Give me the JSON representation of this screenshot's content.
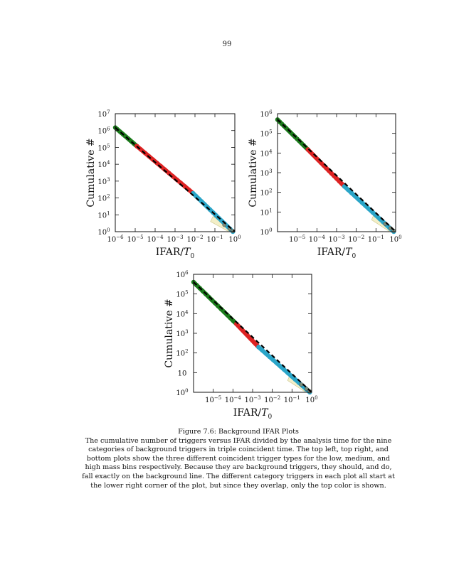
{
  "page": {
    "number": "99"
  },
  "figure": {
    "label": "Figure 7.6: Background IFAR Plots",
    "body": "The cumulative number of triggers versus IFAR divided by the analysis time for the nine categories of background triggers in triple coincident time. The top left, top right, and bottom plots show the three different coincident trigger types for the low, medium, and high mass bins respectively. Because they are background triggers, they should, and do, fall exactly on the background line. The different category triggers in each plot all start at the lower right corner of the plot, but since they overlap, only the top color is shown."
  },
  "colors": {
    "series_green": "#1a7a1a",
    "series_red": "#dd2222",
    "series_cyan": "#2aa5c8",
    "expected_line": "#000000",
    "band": "#f3efc8"
  },
  "chart_data": [
    {
      "type": "scatter",
      "panel": "top-left",
      "xlabel": "IFAR/T_0",
      "ylabel": "Cumulative #",
      "xscale": "log",
      "yscale": "log",
      "xlim": [
        1e-06,
        1
      ],
      "ylim": [
        1,
        10000000.0
      ],
      "xticks": [
        {
          "v": 1e-06,
          "base": "10",
          "exp": "−6"
        },
        {
          "v": 1e-05,
          "base": "10",
          "exp": "−5"
        },
        {
          "v": 0.0001,
          "base": "10",
          "exp": "−4"
        },
        {
          "v": 0.001,
          "base": "10",
          "exp": "−3"
        },
        {
          "v": 0.01,
          "base": "10",
          "exp": "−2"
        },
        {
          "v": 0.1,
          "base": "10",
          "exp": "−1"
        },
        {
          "v": 1,
          "base": "10",
          "exp": "0"
        }
      ],
      "yticks": [
        {
          "v": 1,
          "base": "10",
          "exp": "0"
        },
        {
          "v": 10,
          "base": "10",
          "exp": "1"
        },
        {
          "v": 100,
          "base": "10",
          "exp": "2"
        },
        {
          "v": 1000,
          "base": "10",
          "exp": "3"
        },
        {
          "v": 10000,
          "base": "10",
          "exp": "4"
        },
        {
          "v": 100000,
          "base": "10",
          "exp": "5"
        },
        {
          "v": 1000000,
          "base": "10",
          "exp": "6"
        },
        {
          "v": 10000000,
          "base": "10",
          "exp": "7"
        }
      ],
      "expected": {
        "x": [
          1e-06,
          1
        ],
        "y": [
          1500000,
          1
        ]
      },
      "series": [
        {
          "color_key": "series_green",
          "x_range": [
            1e-06,
            1.2e-05
          ],
          "y_range": [
            1500000,
            120000
          ]
        },
        {
          "color_key": "series_red",
          "x_range": [
            1.2e-05,
            0.008
          ],
          "y_range": [
            120000,
            190
          ]
        },
        {
          "color_key": "series_cyan",
          "x_range": [
            0.008,
            0.8
          ],
          "y_range": [
            190,
            1
          ]
        }
      ]
    },
    {
      "type": "scatter",
      "panel": "top-right",
      "xlabel": "IFAR/T_0",
      "ylabel": "Cumulative #",
      "xscale": "log",
      "yscale": "log",
      "xlim": [
        1e-06,
        1
      ],
      "ylim": [
        1,
        1000000.0
      ],
      "xticks": [
        {
          "v": 1e-05,
          "base": "10",
          "exp": "−5"
        },
        {
          "v": 0.0001,
          "base": "10",
          "exp": "−4"
        },
        {
          "v": 0.001,
          "base": "10",
          "exp": "−3"
        },
        {
          "v": 0.01,
          "base": "10",
          "exp": "−2"
        },
        {
          "v": 0.1,
          "base": "10",
          "exp": "−1"
        },
        {
          "v": 1,
          "base": "10",
          "exp": "0"
        }
      ],
      "yticks": [
        {
          "v": 1,
          "base": "10",
          "exp": "0"
        },
        {
          "v": 10,
          "base": "10",
          "exp": "1"
        },
        {
          "v": 100,
          "base": "10",
          "exp": "2"
        },
        {
          "v": 1000,
          "base": "10",
          "exp": "3"
        },
        {
          "v": 10000,
          "base": "10",
          "exp": "4"
        },
        {
          "v": 100000,
          "base": "10",
          "exp": "5"
        },
        {
          "v": 1000000,
          "base": "10",
          "exp": "6"
        }
      ],
      "expected": {
        "x": [
          1e-06,
          1
        ],
        "y": [
          500000,
          1
        ]
      },
      "series": [
        {
          "color_key": "series_green",
          "x_range": [
            1e-06,
            3.5e-05
          ],
          "y_range": [
            500000,
            15000
          ]
        },
        {
          "color_key": "series_red",
          "x_range": [
            3.5e-05,
            0.0025
          ],
          "y_range": [
            15000,
            200
          ]
        },
        {
          "color_key": "series_cyan",
          "x_range": [
            0.0025,
            0.8
          ],
          "y_range": [
            200,
            1
          ]
        }
      ]
    },
    {
      "type": "scatter",
      "panel": "bottom",
      "xlabel": "IFAR/T_0",
      "ylabel": "Cumulative #",
      "xscale": "log",
      "yscale": "log",
      "xlim": [
        1e-06,
        1
      ],
      "ylim": [
        1,
        1000000.0
      ],
      "xticks": [
        {
          "v": 1e-05,
          "base": "10",
          "exp": "−5"
        },
        {
          "v": 0.0001,
          "base": "10",
          "exp": "−4"
        },
        {
          "v": 0.001,
          "base": "10",
          "exp": "−3"
        },
        {
          "v": 0.01,
          "base": "10",
          "exp": "−2"
        },
        {
          "v": 0.1,
          "base": "10",
          "exp": "−1"
        },
        {
          "v": 1,
          "base": "10",
          "exp": "0"
        }
      ],
      "yticks": [
        {
          "v": 1,
          "base": "10",
          "exp": "0"
        },
        {
          "v": 10,
          "base": "10",
          "exp": ""
        },
        {
          "v": 100,
          "base": "10",
          "exp": "2"
        },
        {
          "v": 1000,
          "base": "10",
          "exp": "3"
        },
        {
          "v": 10000,
          "base": "10",
          "exp": "4"
        },
        {
          "v": 100000,
          "base": "10",
          "exp": "5"
        },
        {
          "v": 1000000,
          "base": "10",
          "exp": "6"
        }
      ],
      "expected": {
        "x": [
          1e-06,
          1
        ],
        "y": [
          400000,
          1
        ]
      },
      "series": [
        {
          "color_key": "series_green",
          "x_range": [
            1e-06,
            0.00015
          ],
          "y_range": [
            400000,
            3000
          ]
        },
        {
          "color_key": "series_red",
          "x_range": [
            0.00015,
            0.002
          ],
          "y_range": [
            3000,
            200
          ]
        },
        {
          "color_key": "series_cyan",
          "x_range": [
            0.002,
            0.8
          ],
          "y_range": [
            200,
            1
          ]
        }
      ]
    }
  ]
}
